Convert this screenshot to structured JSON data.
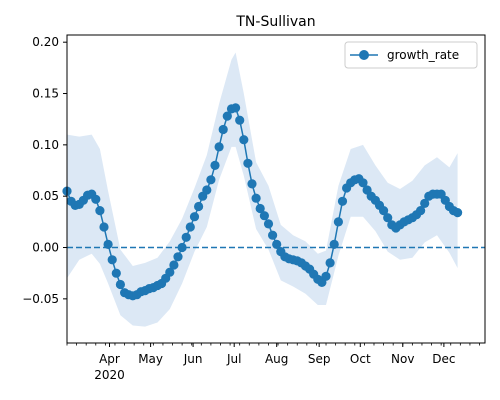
{
  "chart_data": {
    "type": "line",
    "title": "TN-Sullivan",
    "xlabel": "",
    "ylabel": "",
    "legend": {
      "placement": "top-right",
      "entries": [
        "growth_rate"
      ]
    },
    "grid": false,
    "x_range": [
      "2020-03-01",
      "2020-12-31"
    ],
    "ylim": [
      -0.093,
      0.207
    ],
    "x_tick_labels": [
      {
        "date": "2020-04-01",
        "label": "Apr",
        "sublabel": "2020"
      },
      {
        "date": "2020-05-01",
        "label": "May"
      },
      {
        "date": "2020-06-01",
        "label": "Jun"
      },
      {
        "date": "2020-07-01",
        "label": "Jul"
      },
      {
        "date": "2020-08-01",
        "label": "Aug"
      },
      {
        "date": "2020-09-01",
        "label": "Sep"
      },
      {
        "date": "2020-10-01",
        "label": "Oct"
      },
      {
        "date": "2020-11-01",
        "label": "Nov"
      },
      {
        "date": "2020-12-01",
        "label": "Dec"
      }
    ],
    "y_ticks": [
      -0.05,
      0.0,
      0.05,
      0.1,
      0.15,
      0.2
    ],
    "y_tick_labels": [
      "−0.05",
      "0.00",
      "0.05",
      "0.10",
      "0.15",
      "0.20"
    ],
    "reference_line": {
      "y": 0.0,
      "style": "dashed"
    },
    "colors": {
      "series": "#1f77b4",
      "band": "#dce8f5"
    },
    "series": [
      {
        "name": "growth_rate",
        "marker": "circle",
        "linestyle": "solid",
        "points": [
          [
            "2020-03-01",
            0.055
          ],
          [
            "2020-03-04",
            0.045
          ],
          [
            "2020-03-07",
            0.041
          ],
          [
            "2020-03-10",
            0.042
          ],
          [
            "2020-03-13",
            0.046
          ],
          [
            "2020-03-16",
            0.051
          ],
          [
            "2020-03-19",
            0.052
          ],
          [
            "2020-03-22",
            0.047
          ],
          [
            "2020-03-25",
            0.036
          ],
          [
            "2020-03-28",
            0.02
          ],
          [
            "2020-03-31",
            0.003
          ],
          [
            "2020-04-03",
            -0.012
          ],
          [
            "2020-04-06",
            -0.025
          ],
          [
            "2020-04-09",
            -0.036
          ],
          [
            "2020-04-12",
            -0.044
          ],
          [
            "2020-04-15",
            -0.046
          ],
          [
            "2020-04-18",
            -0.047
          ],
          [
            "2020-04-21",
            -0.046
          ],
          [
            "2020-04-24",
            -0.043
          ],
          [
            "2020-04-27",
            -0.042
          ],
          [
            "2020-04-30",
            -0.04
          ],
          [
            "2020-05-03",
            -0.039
          ],
          [
            "2020-05-06",
            -0.037
          ],
          [
            "2020-05-09",
            -0.035
          ],
          [
            "2020-05-12",
            -0.03
          ],
          [
            "2020-05-15",
            -0.024
          ],
          [
            "2020-05-18",
            -0.017
          ],
          [
            "2020-05-21",
            -0.009
          ],
          [
            "2020-05-24",
            0.0
          ],
          [
            "2020-05-27",
            0.01
          ],
          [
            "2020-05-30",
            0.02
          ],
          [
            "2020-06-02",
            0.03
          ],
          [
            "2020-06-05",
            0.04
          ],
          [
            "2020-06-08",
            0.05
          ],
          [
            "2020-06-11",
            0.056
          ],
          [
            "2020-06-14",
            0.066
          ],
          [
            "2020-06-17",
            0.08
          ],
          [
            "2020-06-20",
            0.098
          ],
          [
            "2020-06-23",
            0.115
          ],
          [
            "2020-06-26",
            0.128
          ],
          [
            "2020-06-29",
            0.135
          ],
          [
            "2020-07-02",
            0.136
          ],
          [
            "2020-07-05",
            0.124
          ],
          [
            "2020-07-08",
            0.105
          ],
          [
            "2020-07-11",
            0.082
          ],
          [
            "2020-07-14",
            0.062
          ],
          [
            "2020-07-17",
            0.048
          ],
          [
            "2020-07-20",
            0.038
          ],
          [
            "2020-07-23",
            0.031
          ],
          [
            "2020-07-26",
            0.023
          ],
          [
            "2020-07-29",
            0.012
          ],
          [
            "2020-08-01",
            0.003
          ],
          [
            "2020-08-04",
            -0.004
          ],
          [
            "2020-08-07",
            -0.009
          ],
          [
            "2020-08-10",
            -0.011
          ],
          [
            "2020-08-13",
            -0.012
          ],
          [
            "2020-08-16",
            -0.013
          ],
          [
            "2020-08-19",
            -0.015
          ],
          [
            "2020-08-22",
            -0.018
          ],
          [
            "2020-08-25",
            -0.021
          ],
          [
            "2020-08-28",
            -0.026
          ],
          [
            "2020-08-31",
            -0.031
          ],
          [
            "2020-09-03",
            -0.034
          ],
          [
            "2020-09-06",
            -0.028
          ],
          [
            "2020-09-09",
            -0.015
          ],
          [
            "2020-09-12",
            0.003
          ],
          [
            "2020-09-15",
            0.025
          ],
          [
            "2020-09-18",
            0.045
          ],
          [
            "2020-09-21",
            0.058
          ],
          [
            "2020-09-24",
            0.063
          ],
          [
            "2020-09-27",
            0.066
          ],
          [
            "2020-09-30",
            0.067
          ],
          [
            "2020-10-03",
            0.063
          ],
          [
            "2020-10-06",
            0.056
          ],
          [
            "2020-10-09",
            0.05
          ],
          [
            "2020-10-12",
            0.046
          ],
          [
            "2020-10-15",
            0.041
          ],
          [
            "2020-10-18",
            0.036
          ],
          [
            "2020-10-21",
            0.029
          ],
          [
            "2020-10-24",
            0.022
          ],
          [
            "2020-10-27",
            0.019
          ],
          [
            "2020-10-30",
            0.022
          ],
          [
            "2020-11-02",
            0.025
          ],
          [
            "2020-11-05",
            0.027
          ],
          [
            "2020-11-08",
            0.029
          ],
          [
            "2020-11-11",
            0.032
          ],
          [
            "2020-11-14",
            0.036
          ],
          [
            "2020-11-17",
            0.043
          ],
          [
            "2020-11-20",
            0.05
          ],
          [
            "2020-11-23",
            0.052
          ],
          [
            "2020-11-26",
            0.052
          ],
          [
            "2020-11-29",
            0.052
          ],
          [
            "2020-12-02",
            0.046
          ],
          [
            "2020-12-05",
            0.04
          ],
          [
            "2020-12-08",
            0.036
          ],
          [
            "2020-12-11",
            0.034
          ]
        ],
        "band": [
          [
            "2020-03-01",
            -0.03,
            0.11
          ],
          [
            "2020-03-10",
            -0.012,
            0.108
          ],
          [
            "2020-03-19",
            -0.006,
            0.11
          ],
          [
            "2020-03-25",
            -0.016,
            0.096
          ],
          [
            "2020-03-31",
            -0.035,
            0.055
          ],
          [
            "2020-04-09",
            -0.066,
            -0.002
          ],
          [
            "2020-04-18",
            -0.076,
            -0.018
          ],
          [
            "2020-04-27",
            -0.077,
            -0.015
          ],
          [
            "2020-05-06",
            -0.073,
            -0.01
          ],
          [
            "2020-05-15",
            -0.06,
            0.006
          ],
          [
            "2020-05-24",
            -0.035,
            0.028
          ],
          [
            "2020-06-02",
            -0.004,
            0.058
          ],
          [
            "2020-06-11",
            0.02,
            0.09
          ],
          [
            "2020-06-20",
            0.066,
            0.14
          ],
          [
            "2020-06-29",
            0.098,
            0.183
          ],
          [
            "2020-07-02",
            0.098,
            0.19
          ],
          [
            "2020-07-08",
            0.07,
            0.15
          ],
          [
            "2020-07-17",
            0.018,
            0.083
          ],
          [
            "2020-07-26",
            -0.002,
            0.06
          ],
          [
            "2020-08-04",
            -0.032,
            0.022
          ],
          [
            "2020-08-13",
            -0.038,
            0.012
          ],
          [
            "2020-08-22",
            -0.045,
            0.006
          ],
          [
            "2020-08-31",
            -0.056,
            -0.006
          ],
          [
            "2020-09-06",
            -0.056,
            -0.003
          ],
          [
            "2020-09-15",
            -0.008,
            0.06
          ],
          [
            "2020-09-24",
            0.03,
            0.096
          ],
          [
            "2020-10-03",
            0.03,
            0.1
          ],
          [
            "2020-10-12",
            0.016,
            0.08
          ],
          [
            "2020-10-21",
            -0.004,
            0.063
          ],
          [
            "2020-10-30",
            -0.012,
            0.057
          ],
          [
            "2020-11-08",
            -0.01,
            0.065
          ],
          [
            "2020-11-17",
            0.005,
            0.08
          ],
          [
            "2020-11-26",
            0.012,
            0.088
          ],
          [
            "2020-12-05",
            -0.005,
            0.078
          ],
          [
            "2020-12-11",
            -0.02,
            0.092
          ]
        ]
      }
    ]
  }
}
